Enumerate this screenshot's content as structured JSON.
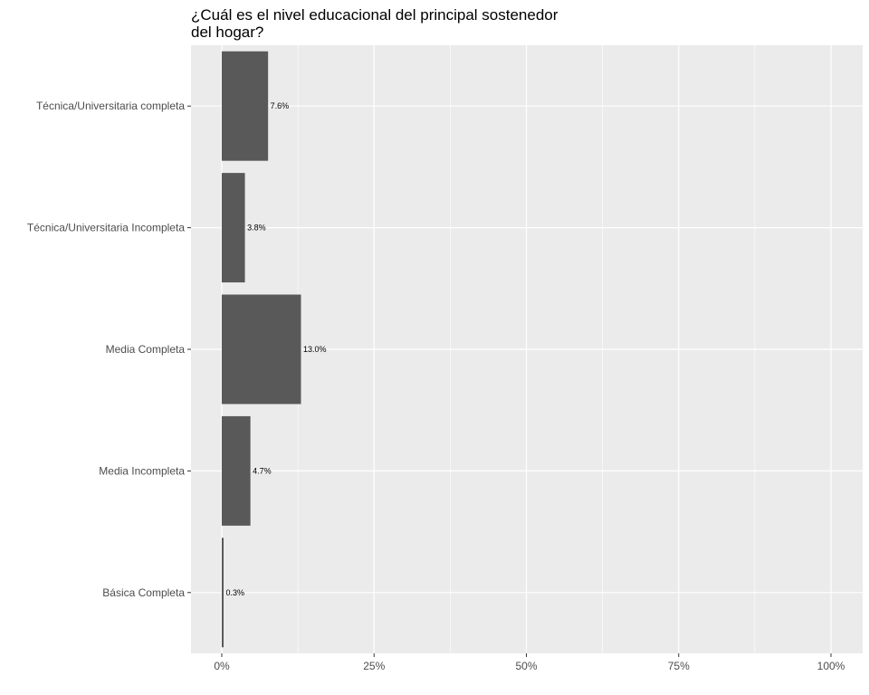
{
  "chart_data": {
    "type": "bar",
    "orientation": "horizontal",
    "title": "¿Cuál es el nivel educacional del principal sostenedor\ndel hogar?",
    "xlabel": "",
    "ylabel": "",
    "categories": [
      "Técnica/Universitaria completa",
      "Técnica/Universitaria Incompleta",
      "Media Completa",
      "Media Incompleta",
      "Básica Completa"
    ],
    "values": [
      7.6,
      3.8,
      13.0,
      4.7,
      0.3
    ],
    "value_labels": [
      "7.6%",
      "3.8%",
      "13.0%",
      "4.7%",
      "0.3%"
    ],
    "xlim": [
      0,
      100
    ],
    "x_ticks": [
      0,
      25,
      50,
      75,
      100
    ],
    "x_tick_labels": [
      "0%",
      "25%",
      "50%",
      "75%",
      "100%"
    ],
    "grid": true,
    "legend": "none",
    "colors": {
      "panel": "#ebebeb",
      "grid": "#ffffff",
      "bar": "#595959",
      "tick_text": "#4d4d4d",
      "tick_mark": "#333333"
    }
  }
}
